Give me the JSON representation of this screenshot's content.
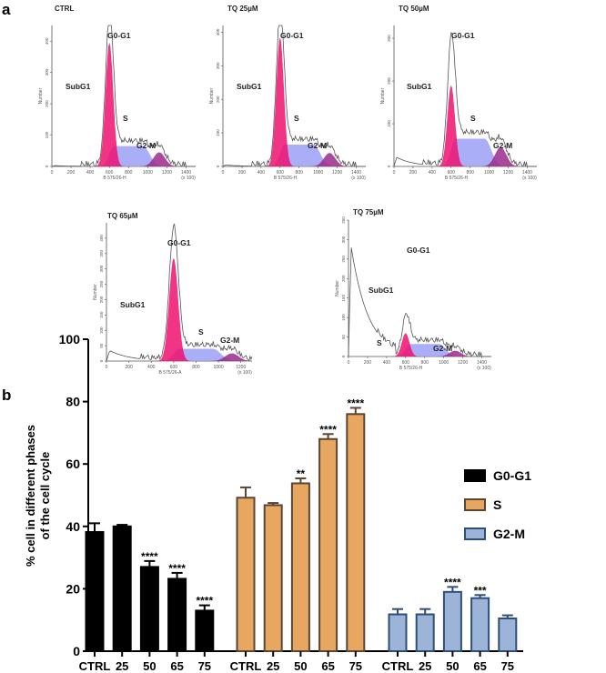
{
  "panel_labels": {
    "a": "a",
    "b": "b"
  },
  "chart_data": [
    {
      "type": "area",
      "title": "Flow cytometry cell-cycle histograms",
      "xlabel": "B 575/26-H",
      "xlabel_alt": "B 575/26-A",
      "x_unit": "(x 100)",
      "ylabel": "Number",
      "xlim": [
        0,
        1500
      ],
      "x_ticks": [
        0,
        200,
        400,
        600,
        800,
        1000,
        1200,
        1400
      ],
      "phase_labels": [
        "SubG1",
        "G0-G1",
        "S",
        "G2-M"
      ],
      "panels": [
        {
          "title": "CTRL",
          "ymax": 450,
          "y_ticks": [
            0,
            100,
            200,
            300,
            400
          ],
          "g1_peak": 395,
          "total_peak": 440,
          "s_level": 65,
          "g2_peak": 45,
          "subg1_level": 3
        },
        {
          "title": "TQ 25µM",
          "ymax": 420,
          "y_ticks": [
            0,
            100,
            200,
            300,
            400
          ],
          "g1_peak": 385,
          "total_peak": 420,
          "s_level": 65,
          "g2_peak": 40,
          "subg1_level": 5
        },
        {
          "title": "TQ 50µM",
          "ymax": 330,
          "y_ticks": [
            0,
            100,
            200,
            300
          ],
          "g1_peak": 190,
          "total_peak": 260,
          "s_level": 65,
          "g2_peak": 45,
          "subg1_level": 25
        },
        {
          "title": "TQ 65µM",
          "ymax": 450,
          "y_ticks": [
            0,
            50,
            100,
            150,
            200,
            250,
            300,
            350,
            400
          ],
          "g1_peak": 335,
          "total_peak": 405,
          "s_level": 40,
          "g2_peak": 25,
          "subg1_level": 40,
          "xlabel_key": "alt",
          "xmax": 1300
        },
        {
          "title": "TQ 75µM",
          "ymax": 350,
          "y_ticks": [
            0,
            50,
            100,
            150,
            200,
            250,
            300,
            350
          ],
          "g1_peak": 60,
          "total_peak": 80,
          "s_level": 32,
          "g2_peak": 15,
          "subg1_level": 330
        }
      ]
    },
    {
      "type": "bar",
      "title": "",
      "ylabel": "% cell in different phases",
      "ylabel2": "of the cell cycle",
      "ylim": [
        0,
        100
      ],
      "y_ticks": [
        0,
        20,
        40,
        60,
        80,
        100
      ],
      "categories": [
        "CTRL",
        "25",
        "50",
        "65",
        "75"
      ],
      "series": [
        {
          "name": "G0-G1",
          "color": "#000000",
          "fill": "#000000",
          "values": [
            38.2,
            40.0,
            27.0,
            23.2,
            13.0
          ],
          "errors": [
            2.8,
            0.5,
            1.9,
            1.9,
            1.7
          ],
          "significance": [
            "",
            "",
            "****",
            "****",
            "****"
          ]
        },
        {
          "name": "S",
          "color": "#5a4632",
          "fill": "#e8a761",
          "values": [
            49.2,
            46.8,
            53.8,
            68.0,
            76.0
          ],
          "errors": [
            3.3,
            0.7,
            1.6,
            1.6,
            2.0
          ],
          "significance": [
            "",
            "",
            "**",
            "****",
            "****"
          ]
        },
        {
          "name": "G2-M",
          "color": "#2f4e7a",
          "fill": "#9bb4d8",
          "values": [
            11.8,
            11.8,
            19.0,
            17.0,
            10.5
          ],
          "errors": [
            1.7,
            1.7,
            1.6,
            1.0,
            1.0
          ],
          "significance": [
            "",
            "",
            "****",
            "***",
            ""
          ]
        }
      ],
      "legend": "right"
    }
  ]
}
